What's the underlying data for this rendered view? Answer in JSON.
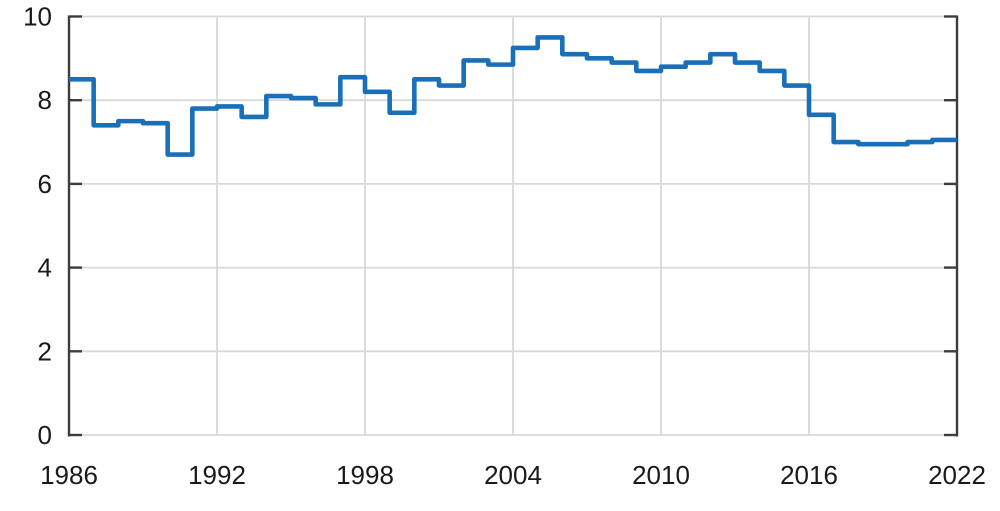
{
  "chart_data": {
    "type": "line",
    "step_mode": "after",
    "title": "",
    "xlabel": "",
    "ylabel": "",
    "x": [
      1986,
      1987,
      1988,
      1989,
      1990,
      1991,
      1992,
      1993,
      1994,
      1995,
      1996,
      1997,
      1998,
      1999,
      2000,
      2001,
      2002,
      2003,
      2004,
      2005,
      2006,
      2007,
      2008,
      2009,
      2010,
      2011,
      2012,
      2013,
      2014,
      2015,
      2016,
      2017,
      2018,
      2019,
      2020,
      2021
    ],
    "values": [
      8.5,
      7.4,
      7.5,
      7.45,
      6.7,
      7.8,
      7.85,
      7.6,
      8.1,
      8.05,
      7.9,
      8.55,
      8.2,
      7.7,
      8.5,
      8.35,
      8.95,
      8.85,
      9.25,
      9.5,
      9.1,
      9.0,
      8.9,
      8.7,
      8.8,
      8.9,
      9.1,
      8.9,
      8.7,
      8.35,
      7.65,
      7.0,
      6.95,
      6.95,
      7.0,
      7.05
    ],
    "step_extends_to": 2022,
    "xlim": [
      1986,
      2022
    ],
    "ylim": [
      0,
      10
    ],
    "x_tick_values": [
      1986,
      1992,
      1998,
      2004,
      2010,
      2016,
      2022
    ],
    "x_tick_labels": [
      "1986",
      "1992",
      "1998",
      "2004",
      "2010",
      "2016",
      "2022"
    ],
    "y_tick_values": [
      0,
      2,
      4,
      6,
      8,
      10
    ],
    "y_tick_labels": [
      "0",
      "2",
      "4",
      "6",
      "8",
      "10"
    ],
    "grid": true,
    "legend": "none",
    "colors": {
      "line": "#1a70b8",
      "axis": "#3d3d3d",
      "grid": "#d9d9d9",
      "text": "#1a1a1a",
      "background": "#ffffff"
    }
  }
}
